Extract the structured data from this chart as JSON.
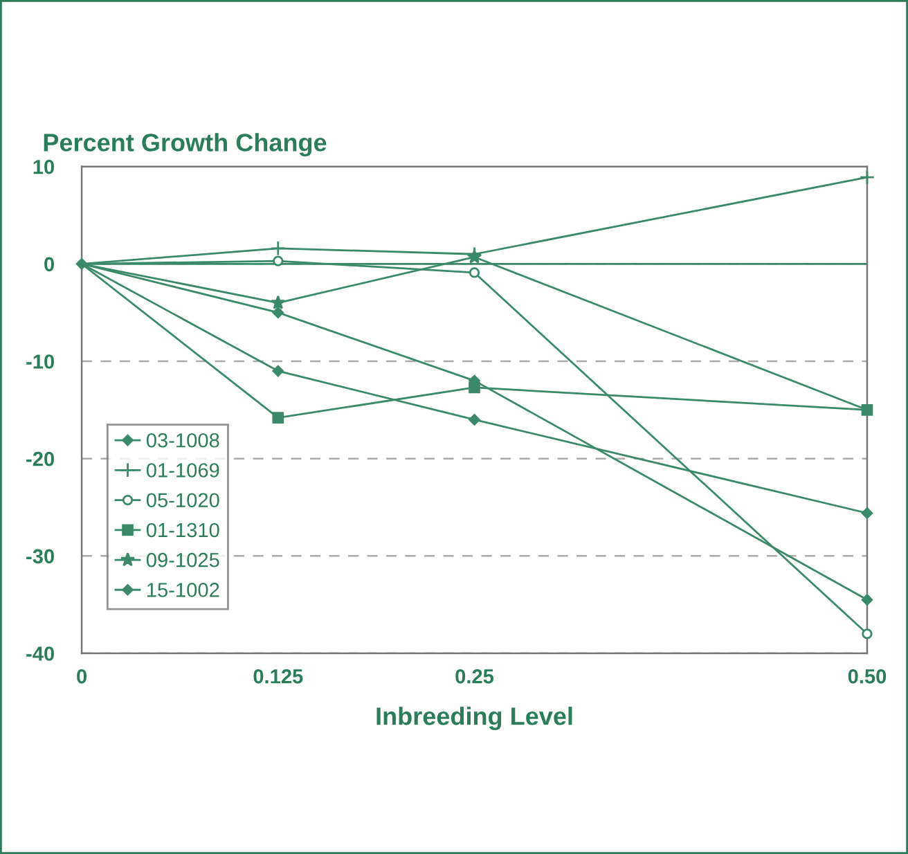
{
  "chart_data": {
    "type": "line",
    "title": "Percent Growth Change",
    "xlabel": "Inbreeding Level",
    "x": [
      0,
      0.125,
      0.25,
      0.5
    ],
    "xlim": [
      0,
      0.5
    ],
    "xticks": [
      0,
      0.125,
      0.25,
      {
        "value": 0.5,
        "label": "0.50"
      }
    ],
    "ylim": [
      -40,
      10
    ],
    "yticks": [
      10,
      0,
      -10,
      -20,
      -30,
      -40
    ],
    "grid": "y",
    "legend": "bottom left",
    "line_style": "solid",
    "ref_lines": [
      {
        "axis": "y",
        "value": 0,
        "label": null,
        "color": "#3a8a6a",
        "line_style": "solid"
      }
    ],
    "series": [
      {
        "name": "03-1008",
        "color": "#3a8a6a",
        "marker": "diamond",
        "values": [
          0,
          -5,
          -12,
          -34.5
        ]
      },
      {
        "name": "01-1069",
        "color": "#3a8a6a",
        "marker": "cross",
        "values": [
          0,
          1.6,
          1,
          8.9
        ]
      },
      {
        "name": "05-1020",
        "color": "#3a8a6a",
        "marker": "circle",
        "values": [
          0,
          0.3,
          -0.9,
          -38
        ]
      },
      {
        "name": "01-1310",
        "color": "#3a8a6a",
        "marker": "square",
        "values": [
          0,
          -15.8,
          -12.7,
          -15
        ]
      },
      {
        "name": "09-1025",
        "color": "#3a8a6a",
        "marker": "star",
        "values": [
          0,
          -4,
          0.7,
          -15
        ]
      },
      {
        "name": "15-1002",
        "color": "#3a8a6a",
        "marker": "diamond",
        "values": [
          0,
          -11,
          -16,
          -25.6
        ]
      }
    ]
  }
}
